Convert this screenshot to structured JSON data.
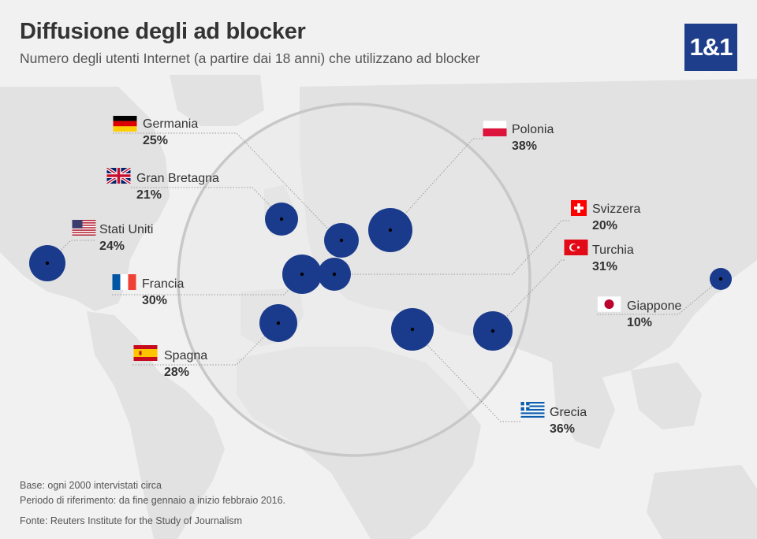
{
  "header": {
    "title": "Diffusione degli ad blocker",
    "subtitle": "Numero degli utenti Internet (a partire dai 18 anni) che utilizzano ad blocker",
    "logo": "1&1"
  },
  "countries": [
    {
      "id": "germania",
      "name": "Germania",
      "value": "25%",
      "flag": "germany-flag"
    },
    {
      "id": "gran-bretagna",
      "name": "Gran Bretagna",
      "value": "21%",
      "flag": "uk-flag"
    },
    {
      "id": "stati-uniti",
      "name": "Stati Uniti",
      "value": "24%",
      "flag": "usa-flag"
    },
    {
      "id": "francia",
      "name": "Francia",
      "value": "30%",
      "flag": "france-flag"
    },
    {
      "id": "spagna",
      "name": "Spagna",
      "value": "28%",
      "flag": "spain-flag"
    },
    {
      "id": "polonia",
      "name": "Polonia",
      "value": "38%",
      "flag": "poland-flag"
    },
    {
      "id": "svizzera",
      "name": "Svizzera",
      "value": "20%",
      "flag": "switzerland-flag"
    },
    {
      "id": "turchia",
      "name": "Turchia",
      "value": "31%",
      "flag": "turkey-flag"
    },
    {
      "id": "giappone",
      "name": "Giappone",
      "value": "10%",
      "flag": "japan-flag"
    },
    {
      "id": "grecia",
      "name": "Grecia",
      "value": "36%",
      "flag": "greece-flag"
    }
  ],
  "footer": {
    "base": "Base: ogni 2000 intervistati circa",
    "period": "Periodo di riferimento: da fine gennaio a inizio febbraio 2016.",
    "source": "Fonte: Reuters Institute for the Study of Journalism"
  },
  "colors": {
    "bubble": "#1a3b8c",
    "logo_bg": "#1e3e8c",
    "land": "#e2e2e2",
    "ocean": "#f1f1f1",
    "magnifier": "#c8c8c8"
  }
}
